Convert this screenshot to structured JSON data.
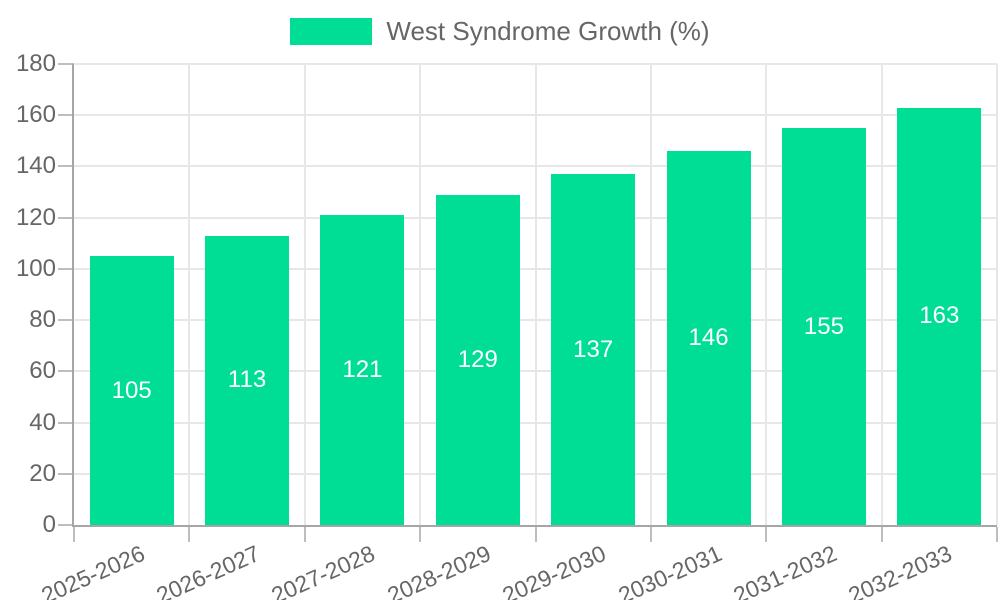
{
  "colors": {
    "accent": "#00de95",
    "axis_text": "#666666",
    "grid_line": "#e7e7e7",
    "axis_line": "#a6a6a6",
    "bar_label": "#ffffff",
    "background": "#ffffff"
  },
  "chart_data": {
    "type": "bar",
    "title": "West Syndrome Growth (%)",
    "categories": [
      "2025-2026",
      "2026-2027",
      "2027-2028",
      "2028-2029",
      "2029-2030",
      "2030-2031",
      "2031-2032",
      "2032-2033"
    ],
    "values": [
      105,
      113,
      121,
      129,
      137,
      146,
      155,
      163
    ],
    "xlabel": "",
    "ylabel": "",
    "ylim": [
      0,
      180
    ],
    "yticks": [
      0,
      20,
      40,
      60,
      80,
      100,
      120,
      140,
      160,
      180
    ],
    "grid": true,
    "legend_position": "top-center",
    "bar_label_position": "inside-center"
  }
}
